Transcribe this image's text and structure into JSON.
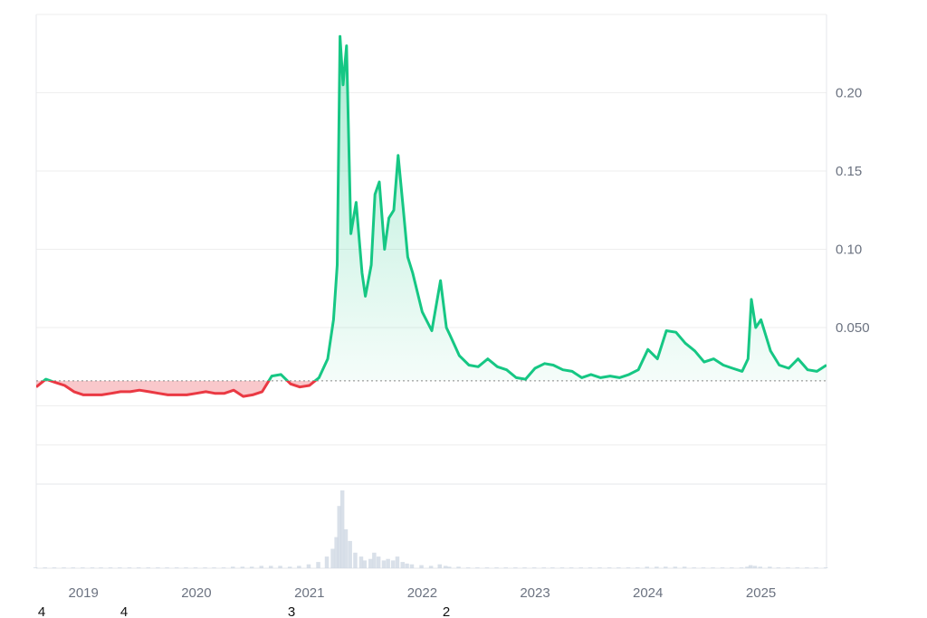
{
  "chart_data": {
    "type": "area",
    "title": "",
    "xlabel": "",
    "ylabel": "",
    "x_ticks": [
      "2019",
      "2020",
      "2021",
      "2022",
      "2023",
      "2024",
      "2025"
    ],
    "y_ticks": [
      "0.050",
      "0.10",
      "0.15",
      "0.20"
    ],
    "ylim": [
      -0.05,
      0.25
    ],
    "xlim": [
      "2018-08-01",
      "2025-08-01"
    ],
    "grid": true,
    "legend": "none",
    "baseline": 0.016,
    "colors": {
      "above": "#16c784",
      "below": "#ea3943",
      "tick_text": "#6b7280",
      "grid": "#eeeeee"
    },
    "series": [
      {
        "x": [
          "2018-08-01",
          "2018-09-01",
          "2018-10-01",
          "2018-11-01",
          "2018-12-01",
          "2019-01-01",
          "2019-02-01",
          "2019-03-01",
          "2019-04-01",
          "2019-05-01",
          "2019-06-01",
          "2019-07-01",
          "2019-08-01",
          "2019-09-01",
          "2019-10-01",
          "2019-11-01",
          "2019-12-01",
          "2020-01-01",
          "2020-02-01",
          "2020-03-01",
          "2020-04-01",
          "2020-05-01",
          "2020-06-01",
          "2020-07-01",
          "2020-08-01",
          "2020-09-01",
          "2020-10-01",
          "2020-11-01",
          "2020-12-01",
          "2021-01-01",
          "2021-02-01",
          "2021-03-01",
          "2021-03-20",
          "2021-04-01",
          "2021-04-10",
          "2021-04-20",
          "2021-05-01",
          "2021-05-15",
          "2021-06-01",
          "2021-06-20",
          "2021-07-01",
          "2021-07-20",
          "2021-08-01",
          "2021-08-15",
          "2021-09-01",
          "2021-09-15",
          "2021-10-01",
          "2021-10-15",
          "2021-11-01",
          "2021-11-15",
          "2021-12-01",
          "2022-01-01",
          "2022-02-01",
          "2022-03-01",
          "2022-03-20",
          "2022-04-01",
          "2022-05-01",
          "2022-06-01",
          "2022-07-01",
          "2022-08-01",
          "2022-09-01",
          "2022-10-01",
          "2022-11-01",
          "2022-12-01",
          "2023-01-01",
          "2023-02-01",
          "2023-03-01",
          "2023-04-01",
          "2023-05-01",
          "2023-06-01",
          "2023-07-01",
          "2023-08-01",
          "2023-09-01",
          "2023-10-01",
          "2023-11-01",
          "2023-12-01",
          "2024-01-01",
          "2024-02-01",
          "2024-03-01",
          "2024-04-01",
          "2024-05-01",
          "2024-06-01",
          "2024-07-01",
          "2024-08-01",
          "2024-09-01",
          "2024-10-01",
          "2024-11-01",
          "2024-11-20",
          "2024-12-01",
          "2024-12-15",
          "2025-01-01",
          "2025-02-01",
          "2025-03-01",
          "2025-04-01",
          "2025-05-01",
          "2025-06-01",
          "2025-07-01",
          "2025-08-01"
        ],
        "values": [
          0.012,
          0.017,
          0.015,
          0.013,
          0.009,
          0.007,
          0.007,
          0.007,
          0.008,
          0.009,
          0.009,
          0.01,
          0.009,
          0.008,
          0.007,
          0.007,
          0.007,
          0.008,
          0.009,
          0.008,
          0.008,
          0.01,
          0.006,
          0.007,
          0.009,
          0.019,
          0.02,
          0.014,
          0.012,
          0.013,
          0.018,
          0.03,
          0.055,
          0.09,
          0.236,
          0.205,
          0.23,
          0.11,
          0.13,
          0.085,
          0.07,
          0.09,
          0.135,
          0.143,
          0.1,
          0.12,
          0.125,
          0.16,
          0.125,
          0.095,
          0.085,
          0.06,
          0.048,
          0.08,
          0.05,
          0.045,
          0.032,
          0.026,
          0.025,
          0.03,
          0.025,
          0.023,
          0.018,
          0.017,
          0.024,
          0.027,
          0.026,
          0.023,
          0.022,
          0.018,
          0.02,
          0.018,
          0.019,
          0.018,
          0.02,
          0.023,
          0.036,
          0.03,
          0.048,
          0.047,
          0.04,
          0.035,
          0.028,
          0.03,
          0.026,
          0.024,
          0.022,
          0.03,
          0.068,
          0.05,
          0.055,
          0.035,
          0.026,
          0.024,
          0.03,
          0.023,
          0.022,
          0.026
        ]
      }
    ],
    "volume": [
      0.01,
      0.01,
      0.01,
      0.01,
      0.01,
      0.01,
      0.01,
      0.01,
      0.01,
      0.01,
      0.01,
      0.01,
      0.01,
      0.01,
      0.01,
      0.01,
      0.01,
      0.01,
      0.01,
      0.01,
      0.01,
      0.02,
      0.02,
      0.02,
      0.03,
      0.03,
      0.03,
      0.02,
      0.03,
      0.05,
      0.08,
      0.15,
      0.25,
      0.4,
      0.8,
      1.0,
      0.5,
      0.35,
      0.2,
      0.15,
      0.1,
      0.12,
      0.2,
      0.15,
      0.1,
      0.12,
      0.1,
      0.15,
      0.08,
      0.06,
      0.05,
      0.04,
      0.03,
      0.05,
      0.03,
      0.02,
      0.02,
      0.01,
      0.01,
      0.01,
      0.01,
      0.01,
      0.01,
      0.01,
      0.01,
      0.01,
      0.01,
      0.01,
      0.01,
      0.01,
      0.01,
      0.01,
      0.01,
      0.01,
      0.01,
      0.01,
      0.02,
      0.02,
      0.02,
      0.02,
      0.02,
      0.01,
      0.01,
      0.01,
      0.01,
      0.01,
      0.01,
      0.02,
      0.04,
      0.03,
      0.02,
      0.02,
      0.01,
      0.01,
      0.01,
      0.01,
      0.01,
      0.01
    ]
  },
  "stray_labels": [
    "4",
    "4",
    "3",
    "2"
  ]
}
